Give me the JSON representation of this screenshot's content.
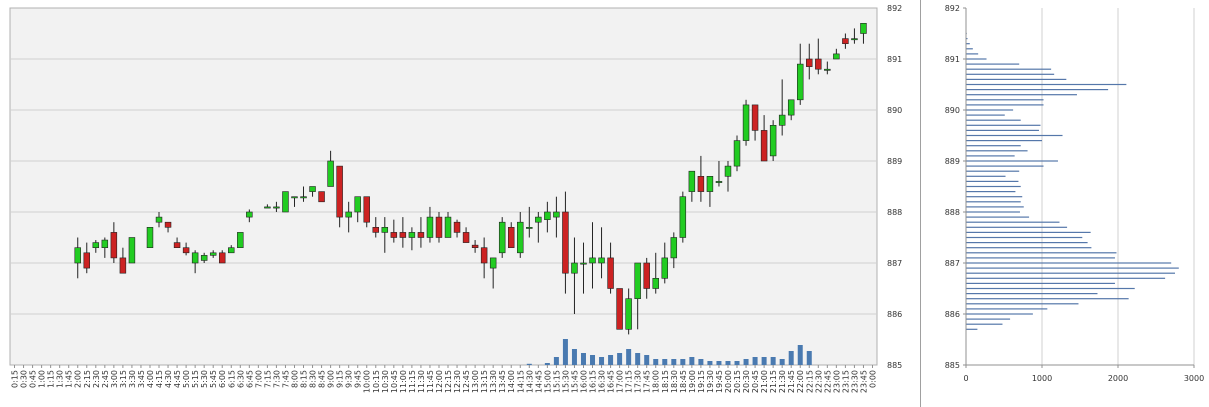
{
  "chart_data": [
    {
      "type": "candlestick",
      "title": "",
      "xlabel": "",
      "ylabel": "",
      "ylim": [
        885,
        892
      ],
      "y_ticks": [
        "885",
        "886",
        "887",
        "888",
        "889",
        "890",
        "891",
        "892"
      ],
      "x_labels": [
        "0:15",
        "0:30",
        "0:45",
        "1:00",
        "1:15",
        "1:30",
        "1:45",
        "2:00",
        "2:15",
        "2:30",
        "2:45",
        "3:00",
        "3:15",
        "3:30",
        "3:45",
        "4:00",
        "4:15",
        "4:30",
        "4:45",
        "5:00",
        "5:15",
        "5:30",
        "5:45",
        "6:00",
        "6:15",
        "6:30",
        "6:45",
        "7:00",
        "7:15",
        "7:30",
        "7:45",
        "8:00",
        "8:15",
        "8:30",
        "8:45",
        "9:00",
        "9:15",
        "9:30",
        "9:45",
        "10:00",
        "10:15",
        "10:30",
        "10:45",
        "11:00",
        "11:15",
        "11:30",
        "11:45",
        "12:00",
        "12:15",
        "12:30",
        "12:45",
        "13:00",
        "13:15",
        "13:30",
        "13:45",
        "14:00",
        "14:15",
        "14:30",
        "14:45",
        "15:00",
        "15:15",
        "15:30",
        "15:45",
        "16:00",
        "16:15",
        "16:30",
        "16:45",
        "17:00",
        "17:15",
        "17:30",
        "17:45",
        "18:00",
        "18:15",
        "18:30",
        "18:45",
        "19:00",
        "19:15",
        "19:30",
        "19:45",
        "20:00",
        "20:15",
        "20:30",
        "20:45",
        "21:00",
        "21:15",
        "21:30",
        "21:45",
        "22:00",
        "22:15",
        "22:30",
        "22:45",
        "23:00",
        "23:15",
        "23:30",
        "23:45",
        "0:00"
      ],
      "candles": [
        {
          "x": "2:00",
          "o": 887.0,
          "h": 887.5,
          "l": 886.7,
          "c": 887.3
        },
        {
          "x": "2:15",
          "o": 887.2,
          "h": 887.4,
          "l": 886.8,
          "c": 886.9
        },
        {
          "x": "2:30",
          "o": 887.3,
          "h": 887.45,
          "l": 887.2,
          "c": 887.4
        },
        {
          "x": "2:45",
          "o": 887.3,
          "h": 887.5,
          "l": 887.1,
          "c": 887.45
        },
        {
          "x": "3:00",
          "o": 887.6,
          "h": 887.8,
          "l": 887.0,
          "c": 887.1
        },
        {
          "x": "3:15",
          "o": 887.1,
          "h": 887.3,
          "l": 886.8,
          "c": 886.8
        },
        {
          "x": "3:30",
          "o": 887.0,
          "h": 887.5,
          "l": 887.0,
          "c": 887.5
        },
        {
          "x": "4:00",
          "o": 887.3,
          "h": 887.7,
          "l": 887.3,
          "c": 887.7
        },
        {
          "x": "4:15",
          "o": 887.8,
          "h": 888.0,
          "l": 887.7,
          "c": 887.9
        },
        {
          "x": "4:30",
          "o": 887.8,
          "h": 887.8,
          "l": 887.6,
          "c": 887.7
        },
        {
          "x": "4:45",
          "o": 887.4,
          "h": 887.5,
          "l": 887.3,
          "c": 887.3
        },
        {
          "x": "5:00",
          "o": 887.3,
          "h": 887.4,
          "l": 887.15,
          "c": 887.2
        },
        {
          "x": "5:15",
          "o": 887.0,
          "h": 887.25,
          "l": 886.8,
          "c": 887.2
        },
        {
          "x": "5:30",
          "o": 887.05,
          "h": 887.2,
          "l": 887.0,
          "c": 887.15
        },
        {
          "x": "5:45",
          "o": 887.15,
          "h": 887.25,
          "l": 887.1,
          "c": 887.2
        },
        {
          "x": "6:00",
          "o": 887.2,
          "h": 887.25,
          "l": 887.0,
          "c": 887.0
        },
        {
          "x": "6:15",
          "o": 887.2,
          "h": 887.35,
          "l": 887.2,
          "c": 887.3
        },
        {
          "x": "6:30",
          "o": 887.3,
          "h": 887.6,
          "l": 887.3,
          "c": 887.6
        },
        {
          "x": "6:45",
          "o": 887.9,
          "h": 888.05,
          "l": 887.8,
          "c": 888.0
        },
        {
          "x": "7:15",
          "o": 888.1,
          "h": 888.15,
          "l": 888.1,
          "c": 888.1
        },
        {
          "x": "7:30",
          "o": 888.1,
          "h": 888.2,
          "l": 888.0,
          "c": 888.1
        },
        {
          "x": "7:45",
          "o": 888.0,
          "h": 888.4,
          "l": 888.0,
          "c": 888.4
        },
        {
          "x": "8:00",
          "o": 888.3,
          "h": 888.3,
          "l": 888.1,
          "c": 888.3
        },
        {
          "x": "8:15",
          "o": 888.3,
          "h": 888.5,
          "l": 888.2,
          "c": 888.3
        },
        {
          "x": "8:30",
          "o": 888.4,
          "h": 888.5,
          "l": 888.3,
          "c": 888.5
        },
        {
          "x": "8:45",
          "o": 888.4,
          "h": 888.4,
          "l": 888.2,
          "c": 888.2
        },
        {
          "x": "9:00",
          "o": 888.5,
          "h": 889.2,
          "l": 888.5,
          "c": 889.0
        },
        {
          "x": "9:15",
          "o": 888.9,
          "h": 888.9,
          "l": 887.7,
          "c": 887.9
        },
        {
          "x": "9:30",
          "o": 887.9,
          "h": 888.2,
          "l": 887.6,
          "c": 888.0
        },
        {
          "x": "9:45",
          "o": 888.0,
          "h": 888.3,
          "l": 887.8,
          "c": 888.3
        },
        {
          "x": "10:00",
          "o": 888.3,
          "h": 888.3,
          "l": 887.7,
          "c": 887.8
        },
        {
          "x": "10:15",
          "o": 887.7,
          "h": 887.9,
          "l": 887.5,
          "c": 887.6
        },
        {
          "x": "10:30",
          "o": 887.6,
          "h": 887.9,
          "l": 887.2,
          "c": 887.7
        },
        {
          "x": "10:45",
          "o": 887.6,
          "h": 887.85,
          "l": 887.4,
          "c": 887.5
        },
        {
          "x": "11:00",
          "o": 887.6,
          "h": 887.9,
          "l": 887.3,
          "c": 887.5
        },
        {
          "x": "11:15",
          "o": 887.5,
          "h": 887.7,
          "l": 887.25,
          "c": 887.6
        },
        {
          "x": "11:30",
          "o": 887.6,
          "h": 887.9,
          "l": 887.3,
          "c": 887.5
        },
        {
          "x": "11:45",
          "o": 887.5,
          "h": 888.1,
          "l": 887.4,
          "c": 887.9
        },
        {
          "x": "12:00",
          "o": 887.9,
          "h": 888.0,
          "l": 887.4,
          "c": 887.5
        },
        {
          "x": "12:15",
          "o": 887.5,
          "h": 888.0,
          "l": 887.5,
          "c": 887.9
        },
        {
          "x": "12:30",
          "o": 887.8,
          "h": 887.85,
          "l": 887.5,
          "c": 887.6
        },
        {
          "x": "12:45",
          "o": 887.6,
          "h": 887.7,
          "l": 887.4,
          "c": 887.4
        },
        {
          "x": "13:00",
          "o": 887.35,
          "h": 887.45,
          "l": 887.2,
          "c": 887.3
        },
        {
          "x": "13:15",
          "o": 887.3,
          "h": 887.5,
          "l": 886.7,
          "c": 887.0
        },
        {
          "x": "13:30",
          "o": 886.9,
          "h": 887.1,
          "l": 886.5,
          "c": 887.1
        },
        {
          "x": "13:45",
          "o": 887.2,
          "h": 887.9,
          "l": 887.1,
          "c": 887.8
        },
        {
          "x": "14:00",
          "o": 887.7,
          "h": 887.8,
          "l": 887.3,
          "c": 887.3
        },
        {
          "x": "14:15",
          "o": 887.2,
          "h": 888.0,
          "l": 887.1,
          "c": 887.8
        },
        {
          "x": "14:30",
          "o": 887.7,
          "h": 888.1,
          "l": 887.5,
          "c": 887.7
        },
        {
          "x": "14:45",
          "o": 887.8,
          "h": 888.0,
          "l": 887.4,
          "c": 887.9
        },
        {
          "x": "15:00",
          "o": 887.85,
          "h": 888.2,
          "l": 887.6,
          "c": 888.0
        },
        {
          "x": "15:15",
          "o": 887.9,
          "h": 888.3,
          "l": 887.5,
          "c": 888.0
        },
        {
          "x": "15:30",
          "o": 888.0,
          "h": 888.4,
          "l": 886.4,
          "c": 886.8
        },
        {
          "x": "15:45",
          "o": 886.8,
          "h": 887.5,
          "l": 886.0,
          "c": 887.0
        },
        {
          "x": "16:00",
          "o": 887.0,
          "h": 887.4,
          "l": 886.4,
          "c": 887.0
        },
        {
          "x": "16:15",
          "o": 887.0,
          "h": 887.8,
          "l": 886.5,
          "c": 887.1
        },
        {
          "x": "16:30",
          "o": 887.0,
          "h": 887.7,
          "l": 886.7,
          "c": 887.1
        },
        {
          "x": "16:45",
          "o": 887.1,
          "h": 887.4,
          "l": 886.4,
          "c": 886.5
        },
        {
          "x": "17:00",
          "o": 886.5,
          "h": 886.5,
          "l": 885.7,
          "c": 885.7
        },
        {
          "x": "17:15",
          "o": 885.7,
          "h": 886.5,
          "l": 885.6,
          "c": 886.3
        },
        {
          "x": "17:30",
          "o": 886.3,
          "h": 887.0,
          "l": 885.7,
          "c": 887.0
        },
        {
          "x": "17:45",
          "o": 887.0,
          "h": 887.1,
          "l": 886.3,
          "c": 886.5
        },
        {
          "x": "18:00",
          "o": 886.5,
          "h": 887.2,
          "l": 886.4,
          "c": 886.7
        },
        {
          "x": "18:15",
          "o": 886.7,
          "h": 887.4,
          "l": 886.6,
          "c": 887.1
        },
        {
          "x": "18:30",
          "o": 887.1,
          "h": 887.6,
          "l": 886.9,
          "c": 887.5
        },
        {
          "x": "18:45",
          "o": 887.5,
          "h": 888.4,
          "l": 887.4,
          "c": 888.3
        },
        {
          "x": "19:00",
          "o": 888.4,
          "h": 888.8,
          "l": 888.2,
          "c": 888.8
        },
        {
          "x": "19:15",
          "o": 888.7,
          "h": 889.1,
          "l": 888.2,
          "c": 888.4
        },
        {
          "x": "19:30",
          "o": 888.4,
          "h": 888.7,
          "l": 888.1,
          "c": 888.7
        },
        {
          "x": "19:45",
          "o": 888.6,
          "h": 889.0,
          "l": 888.5,
          "c": 888.6
        },
        {
          "x": "20:00",
          "o": 888.7,
          "h": 889.0,
          "l": 888.4,
          "c": 888.9
        },
        {
          "x": "20:15",
          "o": 888.9,
          "h": 889.5,
          "l": 888.8,
          "c": 889.4
        },
        {
          "x": "20:30",
          "o": 889.4,
          "h": 890.2,
          "l": 889.3,
          "c": 890.1
        },
        {
          "x": "20:45",
          "o": 890.1,
          "h": 890.1,
          "l": 889.4,
          "c": 889.6
        },
        {
          "x": "21:00",
          "o": 889.6,
          "h": 889.9,
          "l": 889.0,
          "c": 889.0
        },
        {
          "x": "21:15",
          "o": 889.1,
          "h": 889.8,
          "l": 889.0,
          "c": 889.7
        },
        {
          "x": "21:30",
          "o": 889.7,
          "h": 890.6,
          "l": 889.5,
          "c": 889.9
        },
        {
          "x": "21:45",
          "o": 889.9,
          "h": 890.2,
          "l": 889.8,
          "c": 890.2
        },
        {
          "x": "22:00",
          "o": 890.2,
          "h": 891.3,
          "l": 890.1,
          "c": 890.9
        },
        {
          "x": "22:15",
          "o": 891.0,
          "h": 891.3,
          "l": 890.6,
          "c": 890.85
        },
        {
          "x": "22:30",
          "o": 891.0,
          "h": 891.4,
          "l": 890.7,
          "c": 890.8
        },
        {
          "x": "22:45",
          "o": 890.8,
          "h": 890.95,
          "l": 890.7,
          "c": 890.8
        },
        {
          "x": "23:00",
          "o": 891.0,
          "h": 891.2,
          "l": 891.0,
          "c": 891.1
        },
        {
          "x": "23:15",
          "o": 891.4,
          "h": 891.5,
          "l": 891.2,
          "c": 891.3
        },
        {
          "x": "23:30",
          "o": 891.4,
          "h": 891.6,
          "l": 891.3,
          "c": 891.4
        },
        {
          "x": "23:45",
          "o": 891.5,
          "h": 891.7,
          "l": 891.3,
          "c": 891.7
        }
      ],
      "volume": [
        {
          "x": "14:30",
          "v": 0.3
        },
        {
          "x": "15:00",
          "v": 0.5
        },
        {
          "x": "15:15",
          "v": 2.0
        },
        {
          "x": "15:30",
          "v": 6.5
        },
        {
          "x": "15:45",
          "v": 4.0
        },
        {
          "x": "16:00",
          "v": 3.0
        },
        {
          "x": "16:15",
          "v": 2.5
        },
        {
          "x": "16:30",
          "v": 2.0
        },
        {
          "x": "16:45",
          "v": 2.5
        },
        {
          "x": "17:00",
          "v": 3.0
        },
        {
          "x": "17:15",
          "v": 4.0
        },
        {
          "x": "17:30",
          "v": 3.0
        },
        {
          "x": "17:45",
          "v": 2.5
        },
        {
          "x": "18:00",
          "v": 1.5
        },
        {
          "x": "18:15",
          "v": 1.5
        },
        {
          "x": "18:30",
          "v": 1.5
        },
        {
          "x": "18:45",
          "v": 1.5
        },
        {
          "x": "19:00",
          "v": 2.0
        },
        {
          "x": "19:15",
          "v": 1.5
        },
        {
          "x": "19:30",
          "v": 1.0
        },
        {
          "x": "19:45",
          "v": 1.0
        },
        {
          "x": "20:00",
          "v": 1.0
        },
        {
          "x": "20:15",
          "v": 1.0
        },
        {
          "x": "20:30",
          "v": 1.5
        },
        {
          "x": "20:45",
          "v": 2.0
        },
        {
          "x": "21:00",
          "v": 2.0
        },
        {
          "x": "21:15",
          "v": 2.0
        },
        {
          "x": "21:30",
          "v": 1.5
        },
        {
          "x": "21:45",
          "v": 3.5
        },
        {
          "x": "22:00",
          "v": 5.0
        },
        {
          "x": "22:15",
          "v": 3.5
        }
      ],
      "colors": {
        "up": "#22cc22",
        "down": "#cc2222",
        "volume": "#4a7ab0",
        "background": "#f2f2f2",
        "grid": "#d0d0d0"
      }
    },
    {
      "type": "bar",
      "orientation": "horizontal",
      "title": "",
      "xlabel": "",
      "ylabel": "",
      "xlim": [
        0,
        3000
      ],
      "ylim": [
        885,
        892
      ],
      "x_ticks": [
        "0",
        "1000",
        "2000",
        "3000"
      ],
      "y_ticks": [
        "885",
        "886",
        "887",
        "888",
        "889",
        "890",
        "891",
        "892"
      ],
      "bin_size": 0.1,
      "price_levels": [
        885.7,
        885.8,
        885.9,
        886.0,
        886.1,
        886.2,
        886.3,
        886.4,
        886.5,
        886.6,
        886.7,
        886.8,
        886.9,
        887.0,
        887.1,
        887.2,
        887.3,
        887.4,
        887.5,
        887.6,
        887.7,
        887.8,
        887.9,
        888.0,
        888.1,
        888.2,
        888.3,
        888.4,
        888.5,
        888.6,
        888.7,
        888.8,
        888.9,
        889.0,
        889.1,
        889.2,
        889.3,
        889.4,
        889.5,
        889.6,
        889.7,
        889.8,
        889.9,
        890.0,
        890.1,
        890.2,
        890.3,
        890.4,
        890.5,
        890.6,
        890.7,
        890.8,
        890.9,
        891.0,
        891.1,
        891.2,
        891.3,
        891.4,
        891.5,
        891.6
      ],
      "values": [
        150,
        480,
        580,
        880,
        1070,
        1480,
        2140,
        1730,
        2220,
        1960,
        2620,
        2750,
        2800,
        2700,
        1960,
        1980,
        1650,
        1600,
        1530,
        1640,
        1330,
        1230,
        830,
        710,
        760,
        720,
        740,
        650,
        720,
        690,
        520,
        700,
        1020,
        1210,
        640,
        810,
        720,
        1000,
        1270,
        960,
        980,
        720,
        510,
        620,
        1020,
        1020,
        1460,
        1870,
        2110,
        1320,
        1160,
        1120,
        700,
        270,
        160,
        90,
        50,
        20,
        10,
        0
      ],
      "colors": {
        "bar": "#5577aa",
        "grid": "#d0d0d0"
      }
    }
  ]
}
